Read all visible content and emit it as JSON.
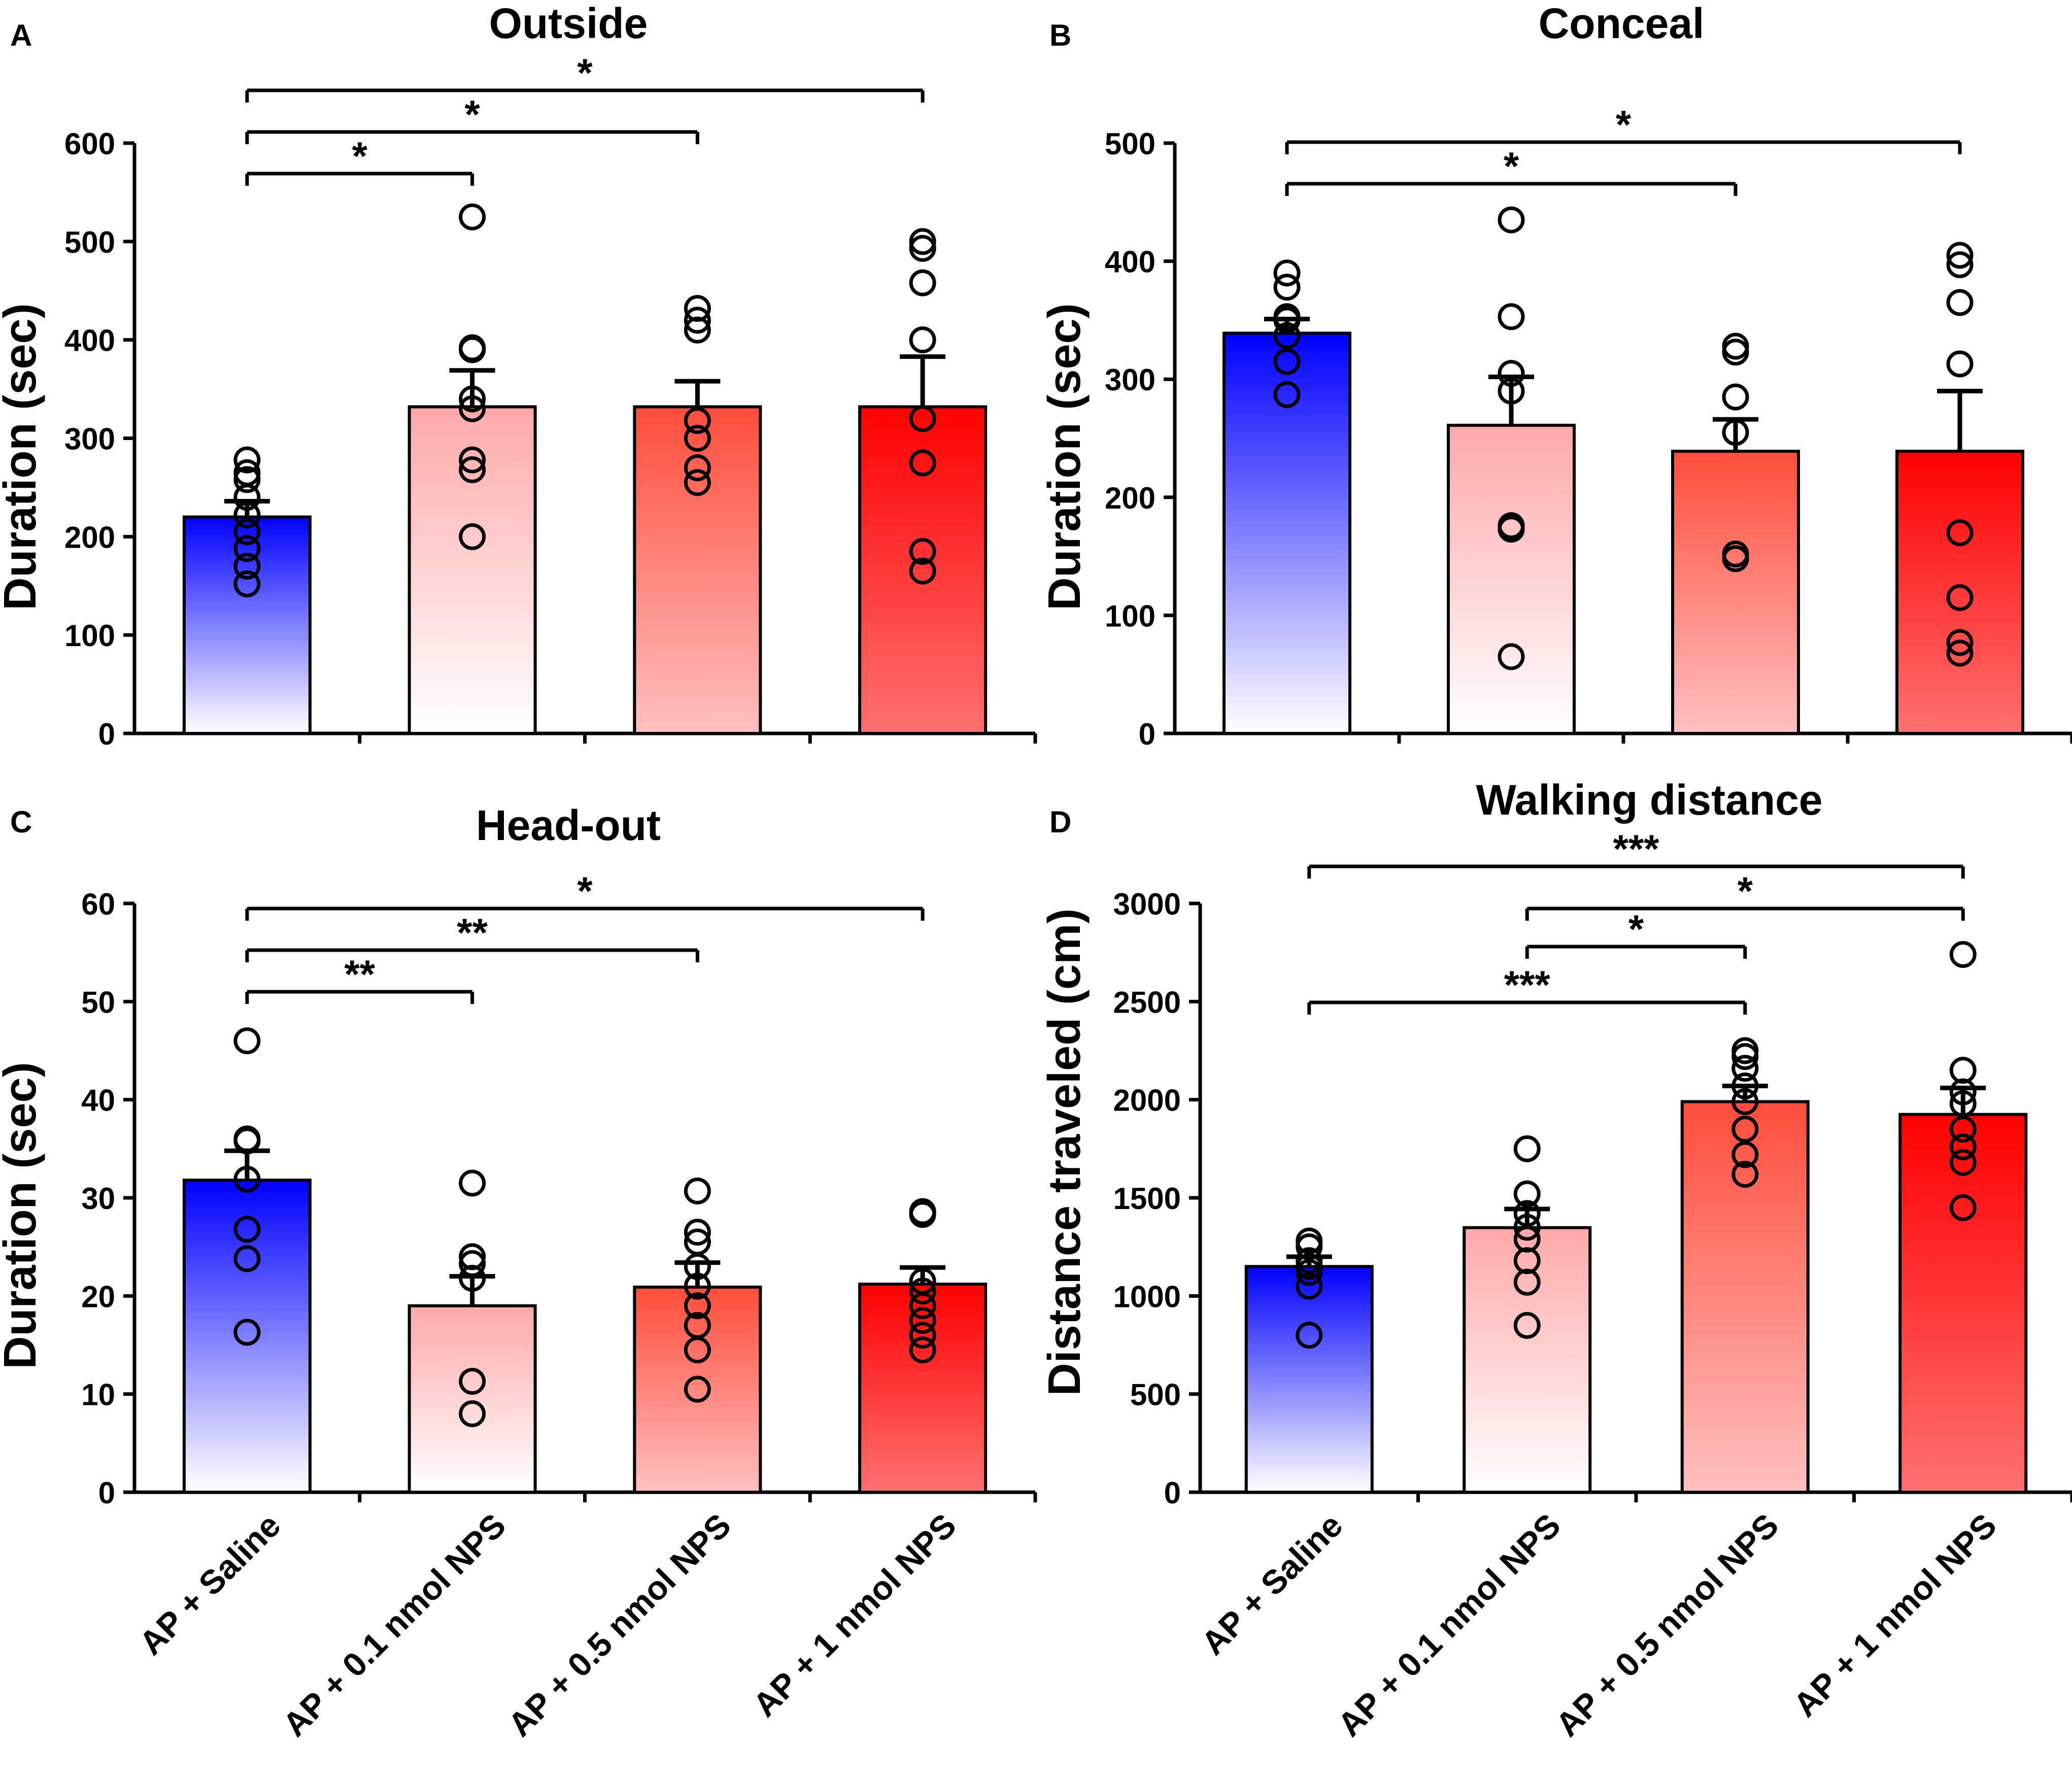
{
  "colors": {
    "saline_top": "#0000ff",
    "saline_bottom": "#ffffff",
    "low_top": "#ffa8a8",
    "low_bottom": "#ffffff",
    "mid_top": "#ff4d3a",
    "mid_bottom": "#ffc0c0",
    "high_top": "#ff0000",
    "high_bottom": "#ff7070"
  },
  "chart_data": [
    {
      "panel_letter": "A",
      "type": "bar",
      "title": "Outside",
      "ylabel": "Duration (sec)",
      "ylim": [
        0,
        600
      ],
      "yticks": [
        0,
        100,
        200,
        300,
        400,
        500,
        600
      ],
      "categories": [
        "AP + Saline",
        "AP + 0.1 nmol NPS",
        "AP + 0.5 nmol NPS",
        "AP + 1 nmol NPS"
      ],
      "show_xticklabels": false,
      "means": [
        220,
        332,
        332,
        332
      ],
      "sem": [
        16,
        37,
        26,
        51
      ],
      "points": [
        [
          152,
          170,
          188,
          205,
          222,
          240,
          258,
          265,
          278
        ],
        [
          200,
          268,
          278,
          330,
          340,
          390,
          392,
          525
        ],
        [
          255,
          270,
          300,
          318,
          410,
          420,
          432
        ],
        [
          165,
          185,
          275,
          320,
          400,
          458,
          493,
          500
        ]
      ],
      "significance": [
        {
          "from": 0,
          "to": 1,
          "label": "*"
        },
        {
          "from": 0,
          "to": 2,
          "label": "*"
        },
        {
          "from": 0,
          "to": 3,
          "label": "*"
        }
      ]
    },
    {
      "panel_letter": "B",
      "type": "bar",
      "title": "Conceal",
      "ylabel": "Duration (sec)",
      "ylim": [
        0,
        500
      ],
      "yticks": [
        0,
        100,
        200,
        300,
        400,
        500
      ],
      "categories": [
        "AP + Saline",
        "AP + 0.1 nmol NPS",
        "AP + 0.5 nmol NPS",
        "AP + 1 nmol NPS"
      ],
      "show_xticklabels": false,
      "means": [
        339,
        261,
        239,
        239
      ],
      "sem": [
        12,
        41,
        27,
        51
      ],
      "points": [
        [
          287,
          315,
          337,
          350,
          353,
          378,
          390
        ],
        [
          65,
          173,
          176,
          290,
          305,
          353,
          435
        ],
        [
          148,
          152,
          255,
          285,
          323,
          328
        ],
        [
          68,
          77,
          115,
          170,
          313,
          365,
          397,
          405
        ]
      ],
      "significance": [
        {
          "from": 0,
          "to": 2,
          "label": "*"
        },
        {
          "from": 0,
          "to": 3,
          "label": "*"
        }
      ]
    },
    {
      "panel_letter": "C",
      "type": "bar",
      "title": "Head-out",
      "ylabel": "Duration (sec)",
      "ylim": [
        0,
        60
      ],
      "yticks": [
        0,
        10,
        20,
        30,
        40,
        50,
        60
      ],
      "categories": [
        "AP + Saline",
        "AP + 0.1 nmol NPS",
        "AP + 0.5 nmol NPS",
        "AP + 1 nmol NPS"
      ],
      "show_xticklabels": true,
      "means": [
        31.8,
        19.0,
        20.9,
        21.2
      ],
      "sem": [
        3.0,
        3.0,
        2.5,
        1.7
      ],
      "points": [
        [
          16.3,
          23.8,
          26.8,
          31.9,
          35.8,
          36.0,
          46.0
        ],
        [
          8.0,
          11.3,
          21.8,
          23.3,
          24.0,
          31.5
        ],
        [
          10.5,
          14.5,
          17.0,
          19.0,
          21.0,
          23.0,
          25.5,
          26.5,
          30.7
        ],
        [
          14.5,
          16.0,
          17.5,
          19.0,
          20.5,
          21.5,
          28.3,
          28.6
        ]
      ],
      "significance": [
        {
          "from": 0,
          "to": 1,
          "label": "**"
        },
        {
          "from": 0,
          "to": 2,
          "label": "**"
        },
        {
          "from": 0,
          "to": 3,
          "label": "*"
        }
      ]
    },
    {
      "panel_letter": "D",
      "type": "bar",
      "title": "Walking distance",
      "ylabel": "Distance traveled (cm)",
      "ylim": [
        0,
        3000
      ],
      "yticks": [
        0,
        500,
        1000,
        1500,
        2000,
        2500,
        3000
      ],
      "categories": [
        "AP + Saline",
        "AP + 0.1 nmol NPS",
        "AP + 0.5 nmol NPS",
        "AP + 1 nmol NPS"
      ],
      "show_xticklabels": true,
      "means": [
        1150,
        1348,
        1990,
        1925
      ],
      "sem": [
        50,
        95,
        80,
        135
      ],
      "points": [
        [
          800,
          1050,
          1120,
          1150,
          1180,
          1250,
          1280
        ],
        [
          850,
          1070,
          1180,
          1290,
          1350,
          1420,
          1520,
          1750
        ],
        [
          1620,
          1720,
          1850,
          1990,
          2070,
          2160,
          2220,
          2250
        ],
        [
          1450,
          1680,
          1760,
          1850,
          1980,
          2040,
          2150,
          2740
        ]
      ],
      "significance": [
        {
          "from": 0,
          "to": 2,
          "label": "***"
        },
        {
          "from": 1,
          "to": 2,
          "label": "*"
        },
        {
          "from": 1,
          "to": 3,
          "label": "*"
        },
        {
          "from": 0,
          "to": 3,
          "label": "***"
        }
      ]
    }
  ]
}
